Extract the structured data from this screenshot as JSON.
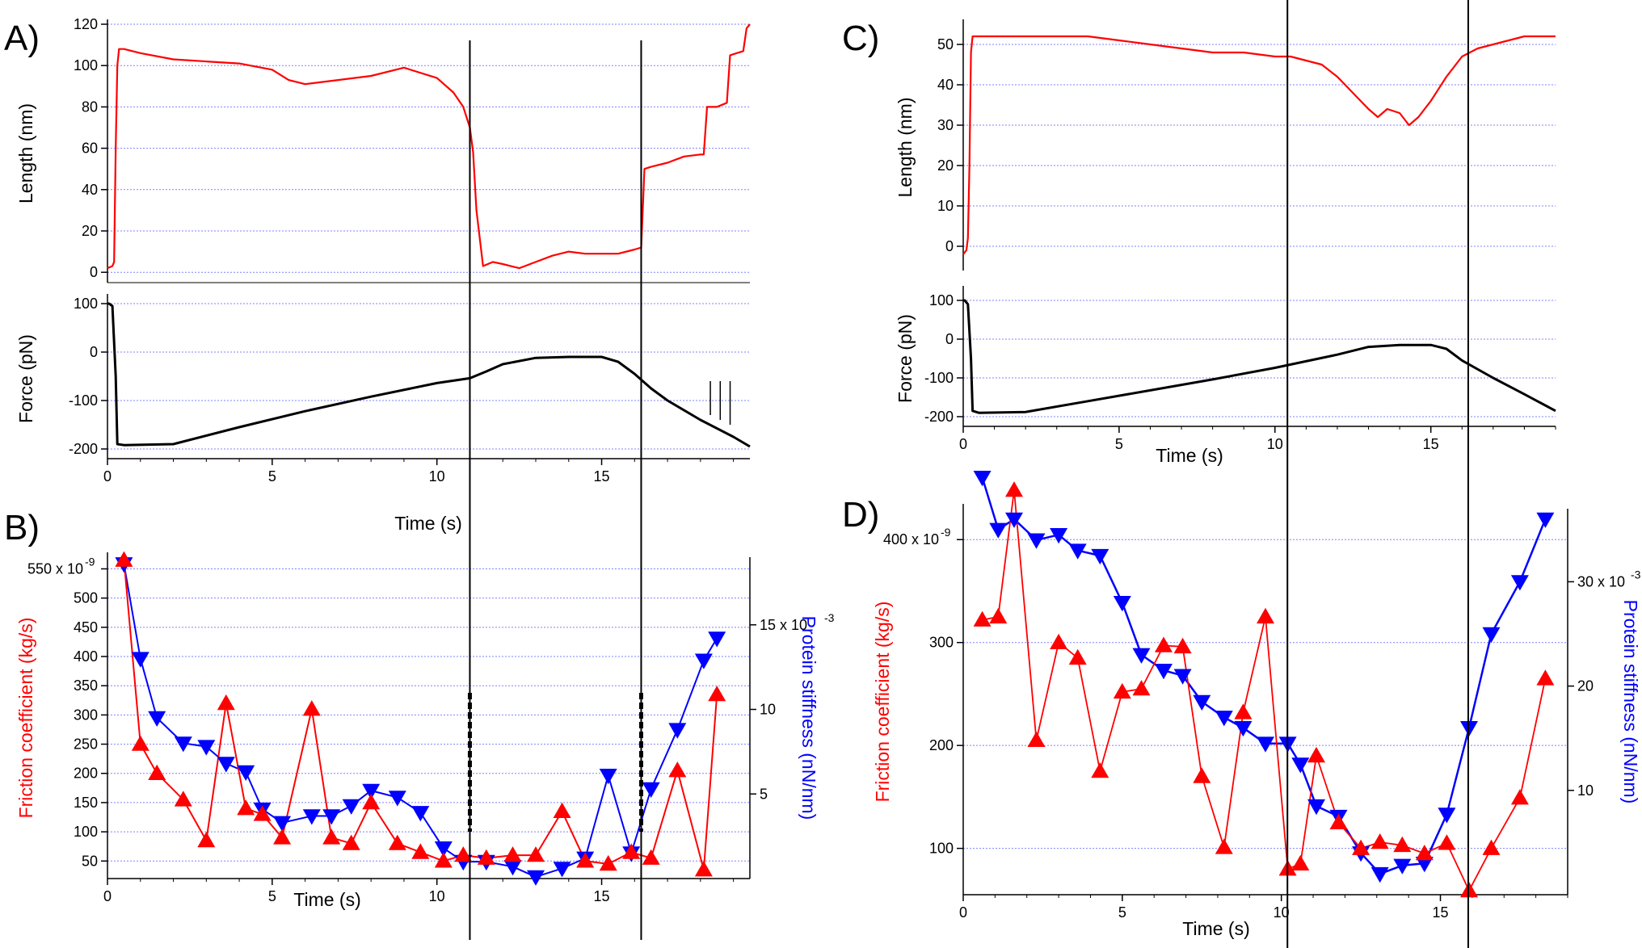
{
  "panels": [
    {
      "letter": "A)"
    },
    {
      "letter": "B)"
    },
    {
      "letter": "C)"
    },
    {
      "letter": "D)"
    }
  ],
  "colors": {
    "length": "#ff0000",
    "force": "#000000",
    "friction": "#ff0000",
    "stiffness": "#0000ff",
    "grid": "#8080ff"
  },
  "chart_data": [
    {
      "id": "A_length",
      "type": "line",
      "xlabel": "",
      "ylabel": "Length (nm)",
      "xlim": [
        0,
        19.5
      ],
      "ylim": [
        -5,
        120
      ],
      "yticks": [
        0,
        20,
        40,
        60,
        80,
        100,
        120
      ],
      "grid": true,
      "series": [
        {
          "x": [
            0,
            0.15,
            0.2,
            0.25,
            0.3,
            0.35,
            0.5,
            1,
            2,
            3,
            4,
            5,
            5.5,
            6,
            7,
            8,
            9,
            10,
            10.5,
            10.8,
            11,
            11.1,
            11.2,
            11.4,
            11.7,
            12,
            12.5,
            13,
            13.5,
            14,
            14.5,
            15,
            15.5,
            16,
            16.2,
            16.3,
            16.5,
            17,
            17.5,
            18,
            18.1,
            18.2,
            18.5,
            18.8,
            18.9,
            19.1,
            19.3,
            19.4,
            19.5
          ],
          "y": [
            2,
            3,
            5,
            60,
            100,
            108,
            108,
            106,
            103,
            102,
            101,
            98,
            93,
            91,
            93,
            95,
            99,
            94,
            87,
            80,
            70,
            58,
            30,
            3,
            5,
            4,
            2,
            5,
            8,
            10,
            9,
            9,
            9,
            11,
            12,
            50,
            51,
            53,
            56,
            57,
            57,
            80,
            80,
            82,
            105,
            106,
            107,
            118,
            120
          ]
        }
      ]
    },
    {
      "id": "A_force",
      "type": "line",
      "xlabel": "Time (s)",
      "ylabel": "Force (pN)",
      "xlim": [
        0,
        19.5
      ],
      "ylim": [
        -220,
        110
      ],
      "xticks": [
        0,
        5,
        10,
        15
      ],
      "yticks": [
        -200,
        -100,
        0,
        100
      ],
      "grid": true,
      "series": [
        {
          "x": [
            0,
            0.05,
            0.15,
            0.25,
            0.3,
            0.5,
            2,
            4,
            6,
            8,
            10,
            11,
            11.5,
            12,
            13,
            14,
            15,
            15.5,
            16,
            16.5,
            17,
            18,
            19,
            19.5
          ],
          "y": [
            100,
            100,
            95,
            -50,
            -190,
            -192,
            -190,
            -155,
            -122,
            -92,
            -64,
            -54,
            -40,
            -25,
            -12,
            -10,
            -10,
            -20,
            -45,
            -75,
            -100,
            -140,
            -175,
            -195
          ]
        }
      ]
    },
    {
      "id": "B",
      "type": "line",
      "xlabel": "Time (s)",
      "ylabel": "Friction coefficient (kg/s)",
      "y2label": "Protein stiffness (nN/nm)",
      "xlim": [
        0,
        19.5
      ],
      "ylim": [
        20,
        570
      ],
      "y2lim": [
        0,
        19
      ],
      "xticks": [
        0,
        5,
        10,
        15
      ],
      "yticks": [
        50,
        100,
        150,
        200,
        250,
        300,
        350,
        400,
        450,
        500,
        550
      ],
      "y2ticks": [
        5,
        10,
        15
      ],
      "yexponent": "550 x 10",
      "y2exponent": "15 x 10",
      "grid": true,
      "series": [
        {
          "axis": "left",
          "marker": "triangle-up",
          "x": [
            0.5,
            1,
            1.5,
            2.3,
            3,
            3.6,
            4.2,
            4.7,
            5.3,
            6.2,
            6.8,
            7.4,
            8,
            8.8,
            9.5,
            10.2,
            10.8,
            11.5,
            12.3,
            13,
            13.8,
            14.5,
            15.2,
            15.9,
            16.5,
            17.3,
            18.1,
            18.5
          ],
          "y": [
            565,
            250,
            200,
            155,
            85,
            320,
            140,
            130,
            90,
            310,
            90,
            80,
            150,
            80,
            65,
            50,
            60,
            55,
            60,
            60,
            135,
            50,
            45,
            65,
            55,
            205,
            35,
            335
          ]
        },
        {
          "axis": "right",
          "marker": "triangle-down",
          "x": [
            0.5,
            1,
            1.5,
            2.3,
            3,
            3.6,
            4.2,
            4.7,
            5.3,
            6.2,
            6.8,
            7.4,
            8,
            8.8,
            9.5,
            10.2,
            10.8,
            11.5,
            12.3,
            13,
            13.8,
            14.5,
            15.2,
            15.9,
            16.5,
            17.3,
            18.1,
            18.5
          ],
          "y": [
            18.6,
            13,
            9.5,
            8,
            7.8,
            6.8,
            6.3,
            4.1,
            3.3,
            3.7,
            3.7,
            4.3,
            5.2,
            4.8,
            3.9,
            1.8,
            1,
            1,
            0.7,
            0.1,
            0.6,
            1.2,
            6.1,
            1.5,
            5.3,
            8.8,
            12.9,
            14.2
          ]
        }
      ]
    },
    {
      "id": "C_length",
      "type": "line",
      "xlabel": "",
      "ylabel": "Length (nm)",
      "xlim": [
        0,
        19
      ],
      "ylim": [
        -6,
        55
      ],
      "yticks": [
        0,
        10,
        20,
        30,
        40,
        50
      ],
      "grid": true,
      "series": [
        {
          "x": [
            0,
            0.1,
            0.15,
            0.2,
            0.25,
            0.3,
            0.5,
            1,
            2,
            3,
            4,
            5,
            6,
            7,
            8,
            9,
            10,
            10.5,
            11,
            11.5,
            12,
            12.5,
            13,
            13.3,
            13.6,
            14,
            14.3,
            14.6,
            15,
            15.5,
            16,
            16.5,
            17,
            17.5,
            18,
            18.5,
            19
          ],
          "y": [
            -2,
            -1,
            2,
            20,
            48,
            52,
            52,
            52,
            52,
            52,
            52,
            51,
            50,
            49,
            48,
            48,
            47,
            47,
            46,
            45,
            42,
            38,
            34,
            32,
            34,
            33,
            30,
            32,
            36,
            42,
            47,
            49,
            50,
            51,
            52,
            52,
            52
          ]
        }
      ]
    },
    {
      "id": "C_force",
      "type": "line",
      "xlabel": "Time (s)",
      "ylabel": "Force (pN)",
      "xlim": [
        0,
        19
      ],
      "ylim": [
        -225,
        125
      ],
      "xticks": [
        0,
        5,
        10,
        15
      ],
      "yticks": [
        -200,
        -100,
        0,
        100
      ],
      "grid": true,
      "series": [
        {
          "x": [
            0,
            0.05,
            0.15,
            0.25,
            0.3,
            0.5,
            2,
            4,
            6,
            8,
            10,
            12,
            13,
            14,
            15,
            15.5,
            16,
            17,
            18,
            19
          ],
          "y": [
            100,
            100,
            90,
            -50,
            -185,
            -190,
            -188,
            -160,
            -132,
            -104,
            -74,
            -40,
            -20,
            -15,
            -15,
            -25,
            -55,
            -100,
            -142,
            -185
          ]
        }
      ]
    },
    {
      "id": "D",
      "type": "line",
      "xlabel": "Time (s)",
      "ylabel": "Friction coefficient (kg/s)",
      "y2label": "Protein stiffness (nN/nm)",
      "xlim": [
        0,
        19
      ],
      "ylim": [
        55,
        430
      ],
      "y2lim": [
        0,
        37
      ],
      "xticks": [
        0,
        5,
        10,
        15
      ],
      "yticks": [
        100,
        200,
        300,
        400
      ],
      "y2ticks": [
        10,
        20,
        30
      ],
      "yexponent": "400 x 10",
      "y2exponent": "30 x 10",
      "grid": true,
      "series": [
        {
          "axis": "left",
          "marker": "triangle-up",
          "x": [
            0.6,
            1.1,
            1.6,
            2.3,
            3,
            3.6,
            4.3,
            5,
            5.6,
            6.3,
            6.9,
            7.5,
            8.2,
            8.8,
            9.5,
            10.2,
            10.6,
            11.1,
            11.8,
            12.5,
            13.1,
            13.8,
            14.5,
            15.2,
            15.9,
            16.6,
            17.5,
            18.3
          ],
          "y": [
            322,
            325,
            448,
            205,
            300,
            285,
            175,
            252,
            255,
            297,
            296,
            170,
            101,
            232,
            325,
            80,
            85,
            190,
            125,
            100,
            106,
            103,
            95,
            105,
            59,
            100,
            149,
            265
          ]
        },
        {
          "axis": "right",
          "marker": "triangle-down",
          "x": [
            0.6,
            1.1,
            1.6,
            2.3,
            3,
            3.6,
            4.3,
            5,
            5.6,
            6.3,
            6.9,
            7.5,
            8.2,
            8.8,
            9.5,
            10.2,
            10.6,
            11.1,
            11.8,
            12.5,
            13.1,
            13.8,
            14.5,
            15.2,
            15.9,
            16.6,
            17.5,
            18.3
          ],
          "y": [
            40,
            35,
            36,
            34,
            34.5,
            33,
            32.5,
            28,
            23,
            21.5,
            21,
            18.5,
            17,
            16,
            14.5,
            14.5,
            12.5,
            8.5,
            7.5,
            4,
            2,
            2.8,
            3,
            7.7,
            16,
            25,
            30,
            36
          ]
        }
      ]
    }
  ]
}
